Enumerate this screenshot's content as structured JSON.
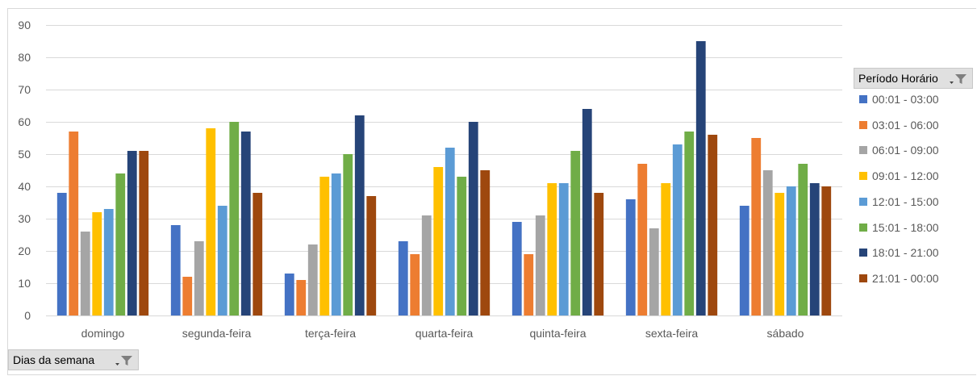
{
  "chart_data": {
    "type": "bar",
    "categories": [
      "domingo",
      "segunda-feira",
      "terça-feira",
      "quarta-feira",
      "quinta-feira",
      "sexta-feira",
      "sábado"
    ],
    "series": [
      {
        "name": "00:01 - 03:00",
        "color": "#4472C4",
        "values": [
          38,
          28,
          13,
          23,
          29,
          36,
          34
        ]
      },
      {
        "name": "03:01 - 06:00",
        "color": "#ED7D31",
        "values": [
          57,
          12,
          11,
          19,
          19,
          47,
          55
        ]
      },
      {
        "name": "06:01 - 09:00",
        "color": "#A5A5A5",
        "values": [
          26,
          23,
          22,
          31,
          31,
          27,
          45
        ]
      },
      {
        "name": "09:01 - 12:00",
        "color": "#FFC000",
        "values": [
          32,
          58,
          43,
          46,
          41,
          41,
          38
        ]
      },
      {
        "name": "12:01 - 15:00",
        "color": "#5B9BD5",
        "values": [
          33,
          34,
          44,
          52,
          41,
          53,
          40
        ]
      },
      {
        "name": "15:01 - 18:00",
        "color": "#70AD47",
        "values": [
          44,
          60,
          50,
          43,
          51,
          57,
          47
        ]
      },
      {
        "name": "18:01 - 21:00",
        "color": "#264478",
        "values": [
          51,
          57,
          62,
          60,
          64,
          85,
          41
        ]
      },
      {
        "name": "21:01 - 00:00",
        "color": "#9E480E",
        "values": [
          51,
          38,
          37,
          45,
          38,
          56,
          40
        ]
      }
    ],
    "ylim": [
      0,
      90
    ],
    "yticks": [
      0,
      10,
      20,
      30,
      40,
      50,
      60,
      70,
      80,
      90
    ],
    "grid": true,
    "legend_position": "right",
    "legend_title": "Período Horário",
    "axis_field_label": "Dias da semana"
  }
}
